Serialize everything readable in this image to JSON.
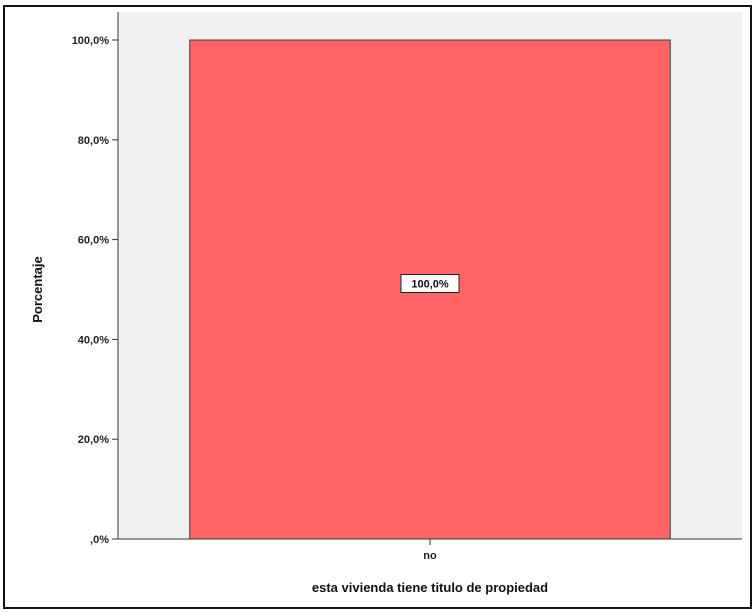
{
  "chart_data": {
    "type": "bar",
    "categories": [
      "no"
    ],
    "values": [
      100.0
    ],
    "data_labels": [
      "100,0%"
    ],
    "xlabel": "esta vivienda tiene titulo de propiedad",
    "ylabel": "Porcentaje",
    "ylim": [
      0,
      100
    ],
    "yticks": [
      0,
      20,
      40,
      60,
      80,
      100
    ],
    "ytick_labels": [
      ",0%",
      "20,0%",
      "40,0%",
      "60,0%",
      "80,0%",
      "100,0%"
    ],
    "grid": false,
    "legend": "none"
  },
  "colors": {
    "bar_fill": "#ff6466",
    "bar_stroke": "#3a3a3a",
    "plot_background": "#f0f0f0",
    "axis": "#333333"
  }
}
